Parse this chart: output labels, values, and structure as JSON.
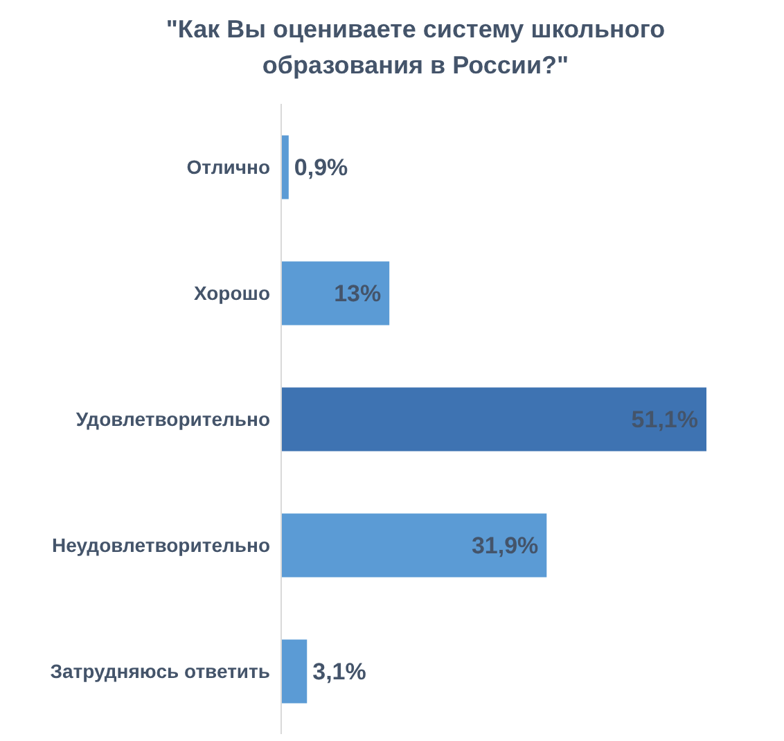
{
  "chart_data": {
    "type": "bar",
    "orientation": "horizontal",
    "title": "\"Как Вы оцениваете систему школьного образования в России?\"",
    "categories": [
      "Отлично",
      "Хорошо",
      "Удовлетворительно",
      "Неудовлетворительно",
      "Затрудняюсь ответить"
    ],
    "values": [
      0.9,
      13,
      51.1,
      31.9,
      3.1
    ],
    "colors": [
      "#5b9bd5",
      "#5b9bd5",
      "#3e73b2",
      "#5b9bd5",
      "#5b9bd5"
    ],
    "value_labels": [
      "0,9%",
      "13%",
      "51,1%",
      "31,9%",
      "3,1%"
    ]
  }
}
